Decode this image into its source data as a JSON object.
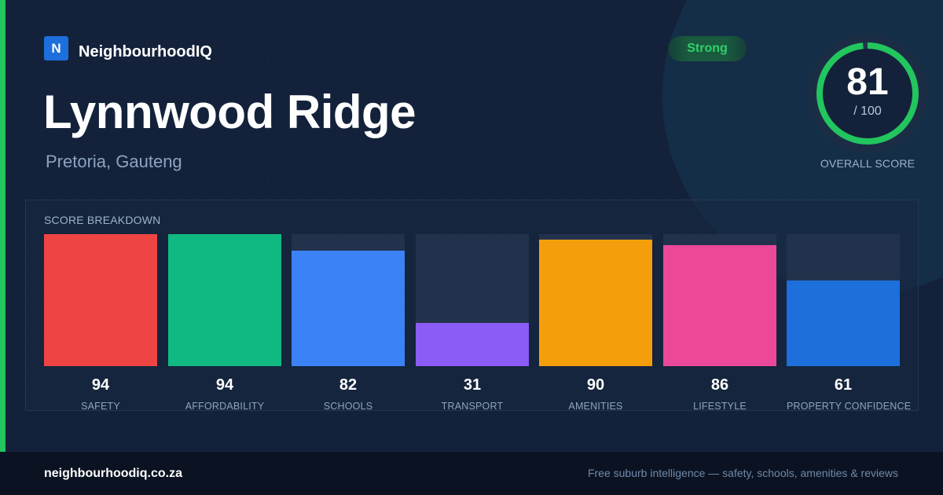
{
  "brand": {
    "logo_letter": "N",
    "name": "NeighbourhoodIQ"
  },
  "suburb": {
    "name": "Lynnwood Ridge",
    "location": "Pretoria, Gauteng"
  },
  "rating_badge": "Strong",
  "overall": {
    "score": "81",
    "max": "/ 100",
    "label": "OVERALL SCORE",
    "value": 81,
    "ring_color": "#22c55e"
  },
  "breakdown": {
    "title": "SCORE BREAKDOWN",
    "bars": [
      {
        "label": "SAFETY",
        "value": 94,
        "display": "94",
        "color": "#ef4444"
      },
      {
        "label": "AFFORDABILITY",
        "value": 94,
        "display": "94",
        "color": "#10b981"
      },
      {
        "label": "SCHOOLS",
        "value": 82,
        "display": "82",
        "color": "#3b82f6"
      },
      {
        "label": "TRANSPORT",
        "value": 31,
        "display": "31",
        "color": "#8b5cf6"
      },
      {
        "label": "AMENITIES",
        "value": 90,
        "display": "90",
        "color": "#f59e0b"
      },
      {
        "label": "LIFESTYLE",
        "value": 86,
        "display": "86",
        "color": "#ec4899"
      },
      {
        "label": "PROPERTY CONFIDENCE",
        "value": 61,
        "display": "61",
        "color": "#1d6fdc"
      }
    ]
  },
  "footer": {
    "url": "neighbourhoodiq.co.za",
    "tagline": "Free suburb intelligence — safety, schools, amenities & reviews"
  },
  "colors": {
    "accent": "#22c55e",
    "brand_blue": "#1d6fdc",
    "background": "#13223a"
  }
}
